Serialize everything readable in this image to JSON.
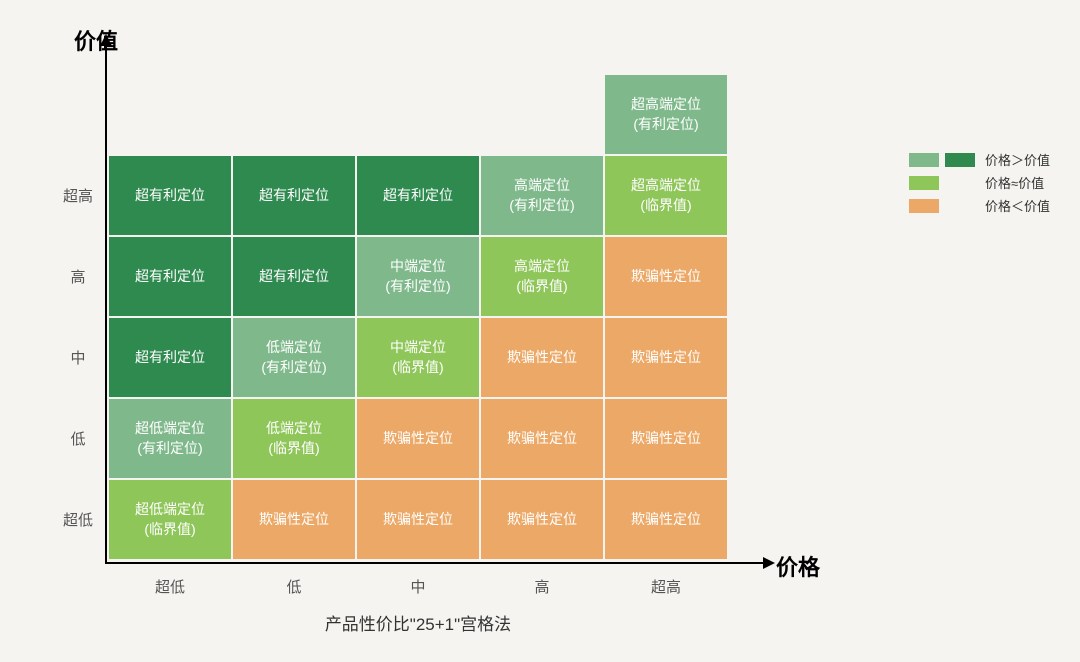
{
  "axes": {
    "y_title": "价值",
    "x_title": "价格",
    "y_labels": [
      "超高",
      "高",
      "中",
      "低",
      "超低"
    ],
    "x_labels": [
      "超低",
      "低",
      "中",
      "高",
      "超高"
    ]
  },
  "caption": "产品性价比\"25+1\"宫格法",
  "colors": {
    "dark_green": "#2f8a4f",
    "mid_green": "#7fb98b",
    "light_green": "#8fc65a",
    "orange": "#eba866",
    "bg": "#f5f4f0"
  },
  "legend": {
    "row1": "价格＞价值",
    "row2": "价格≈价值",
    "row3": "价格＜价值"
  },
  "grid": {
    "cols": 5,
    "rows": 6,
    "cells": [
      {
        "r": 0,
        "c": 0,
        "text": "",
        "color": "empty"
      },
      {
        "r": 0,
        "c": 1,
        "text": "",
        "color": "empty"
      },
      {
        "r": 0,
        "c": 2,
        "text": "",
        "color": "empty"
      },
      {
        "r": 0,
        "c": 3,
        "text": "",
        "color": "empty"
      },
      {
        "r": 0,
        "c": 4,
        "text": "超高端定位\n(有利定位)",
        "color": "mid_green"
      },
      {
        "r": 1,
        "c": 0,
        "text": "超有利定位",
        "color": "dark_green"
      },
      {
        "r": 1,
        "c": 1,
        "text": "超有利定位",
        "color": "dark_green"
      },
      {
        "r": 1,
        "c": 2,
        "text": "超有利定位",
        "color": "dark_green"
      },
      {
        "r": 1,
        "c": 3,
        "text": "高端定位\n(有利定位)",
        "color": "mid_green"
      },
      {
        "r": 1,
        "c": 4,
        "text": "超高端定位\n(临界值)",
        "color": "light_green"
      },
      {
        "r": 2,
        "c": 0,
        "text": "超有利定位",
        "color": "dark_green"
      },
      {
        "r": 2,
        "c": 1,
        "text": "超有利定位",
        "color": "dark_green"
      },
      {
        "r": 2,
        "c": 2,
        "text": "中端定位\n(有利定位)",
        "color": "mid_green"
      },
      {
        "r": 2,
        "c": 3,
        "text": "高端定位\n(临界值)",
        "color": "light_green"
      },
      {
        "r": 2,
        "c": 4,
        "text": "欺骗性定位",
        "color": "orange"
      },
      {
        "r": 3,
        "c": 0,
        "text": "超有利定位",
        "color": "dark_green"
      },
      {
        "r": 3,
        "c": 1,
        "text": "低端定位\n(有利定位)",
        "color": "mid_green"
      },
      {
        "r": 3,
        "c": 2,
        "text": "中端定位\n(临界值)",
        "color": "light_green"
      },
      {
        "r": 3,
        "c": 3,
        "text": "欺骗性定位",
        "color": "orange"
      },
      {
        "r": 3,
        "c": 4,
        "text": "欺骗性定位",
        "color": "orange"
      },
      {
        "r": 4,
        "c": 0,
        "text": "超低端定位\n(有利定位)",
        "color": "mid_green"
      },
      {
        "r": 4,
        "c": 1,
        "text": "低端定位\n(临界值)",
        "color": "light_green"
      },
      {
        "r": 4,
        "c": 2,
        "text": "欺骗性定位",
        "color": "orange"
      },
      {
        "r": 4,
        "c": 3,
        "text": "欺骗性定位",
        "color": "orange"
      },
      {
        "r": 4,
        "c": 4,
        "text": "欺骗性定位",
        "color": "orange"
      },
      {
        "r": 5,
        "c": 0,
        "text": "超低端定位\n(临界值)",
        "color": "light_green"
      },
      {
        "r": 5,
        "c": 1,
        "text": "欺骗性定位",
        "color": "orange"
      },
      {
        "r": 5,
        "c": 2,
        "text": "欺骗性定位",
        "color": "orange"
      },
      {
        "r": 5,
        "c": 3,
        "text": "欺骗性定位",
        "color": "orange"
      },
      {
        "r": 5,
        "c": 4,
        "text": "欺骗性定位",
        "color": "orange"
      }
    ]
  }
}
